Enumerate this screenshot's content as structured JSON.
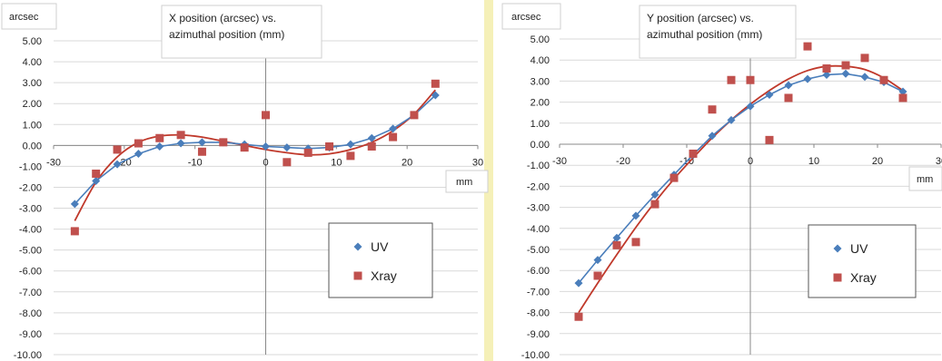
{
  "page": {
    "divider_color": "#f5f0b8"
  },
  "chart_data": [
    {
      "type": "scatter",
      "title": "X position (arcsec) vs. azimuthal position (mm)",
      "title_lines": [
        "X position (arcsec) vs.",
        "azimuthal position (mm)"
      ],
      "xlabel": "mm",
      "ylabel": "arcsec",
      "xlim": [
        -30,
        30
      ],
      "ylim": [
        -10,
        5
      ],
      "xticks": [
        -30,
        -20,
        -10,
        0,
        10,
        20,
        30
      ],
      "yticks": [
        5,
        4,
        3,
        2,
        1,
        0,
        -1,
        -2,
        -3,
        -4,
        -5,
        -6,
        -7,
        -8,
        -9,
        -10
      ],
      "ytick_labels": [
        "5.00",
        "4.00",
        "3.00",
        "2.00",
        "1.00",
        "0.00",
        "-1.00",
        "-2.00",
        "-3.00",
        "-4.00",
        "-5.00",
        "-6.00",
        "-7.00",
        "-8.00",
        "-9.00",
        "-10.00"
      ],
      "grid": {
        "horizontal": true,
        "vertical": false,
        "color": "#d9d9d9"
      },
      "legend_position": "bottom-right",
      "series": [
        {
          "name": "UV",
          "marker": "diamond",
          "color": "#4a7ebb",
          "connected": true,
          "x": [
            -27,
            -24,
            -21,
            -18,
            -15,
            -12,
            -9,
            -6,
            -3,
            0,
            3,
            6,
            9,
            12,
            15,
            18,
            21,
            24
          ],
          "y": [
            -2.8,
            -1.7,
            -0.9,
            -0.4,
            -0.05,
            0.1,
            0.15,
            0.15,
            0.05,
            -0.05,
            -0.1,
            -0.15,
            -0.1,
            0.05,
            0.35,
            0.8,
            1.45,
            2.4
          ]
        },
        {
          "name": "Xray",
          "marker": "square",
          "color": "#c0504d",
          "connected": false,
          "x": [
            -27,
            -24,
            -21,
            -18,
            -15,
            -12,
            -9,
            -6,
            -3,
            0,
            3,
            6,
            9,
            12,
            15,
            18,
            21,
            24
          ],
          "y": [
            -4.1,
            -1.35,
            -0.2,
            0.1,
            0.35,
            0.5,
            -0.3,
            0.15,
            -0.1,
            1.45,
            -0.8,
            -0.35,
            -0.05,
            -0.5,
            -0.05,
            0.4,
            1.45,
            2.95
          ]
        }
      ],
      "trendline": {
        "series": "Xray",
        "kind": "polynomial",
        "color": "#c0392b",
        "x": [
          -27,
          -24,
          -21,
          -18,
          -15,
          -12,
          -9,
          -6,
          -3,
          0,
          3,
          6,
          9,
          12,
          15,
          18,
          21,
          24
        ],
        "y": [
          -3.6,
          -1.75,
          -0.55,
          0.15,
          0.45,
          0.5,
          0.4,
          0.2,
          0.0,
          -0.2,
          -0.35,
          -0.45,
          -0.4,
          -0.2,
          0.15,
          0.7,
          1.5,
          2.65
        ]
      }
    },
    {
      "type": "scatter",
      "title": "Y position (arcsec) vs. azimuthal position (mm)",
      "title_lines": [
        "Y position (arcsec) vs.",
        "azimuthal position (mm)"
      ],
      "xlabel": "mm",
      "ylabel": "arcsec",
      "xlim": [
        -30,
        30
      ],
      "ylim": [
        -10,
        5
      ],
      "xticks": [
        -30,
        -20,
        -10,
        0,
        10,
        20,
        30
      ],
      "yticks": [
        5,
        4,
        3,
        2,
        1,
        0,
        -1,
        -2,
        -3,
        -4,
        -5,
        -6,
        -7,
        -8,
        -9,
        -10
      ],
      "ytick_labels": [
        "5.00",
        "4.00",
        "3.00",
        "2.00",
        "1.00",
        "0.00",
        "-1.00",
        "-2.00",
        "-3.00",
        "-4.00",
        "-5.00",
        "-6.00",
        "-7.00",
        "-8.00",
        "-9.00",
        "-10.00"
      ],
      "grid": {
        "horizontal": true,
        "vertical": false,
        "color": "#d9d9d9"
      },
      "legend_position": "bottom-right",
      "series": [
        {
          "name": "UV",
          "marker": "diamond",
          "color": "#4a7ebb",
          "connected": true,
          "x": [
            -27,
            -24,
            -21,
            -18,
            -15,
            -12,
            -9,
            -6,
            -3,
            0,
            3,
            6,
            9,
            12,
            15,
            18,
            21,
            24
          ],
          "y": [
            -6.6,
            -5.5,
            -4.45,
            -3.4,
            -2.4,
            -1.45,
            -0.5,
            0.4,
            1.15,
            1.8,
            2.35,
            2.8,
            3.1,
            3.3,
            3.35,
            3.2,
            2.95,
            2.5
          ]
        },
        {
          "name": "Xray",
          "marker": "square",
          "color": "#c0504d",
          "connected": false,
          "x": [
            -27,
            -24,
            -21,
            -18,
            -15,
            -12,
            -9,
            -6,
            -3,
            0,
            3,
            6,
            9,
            12,
            15,
            18,
            21,
            24
          ],
          "y": [
            -8.2,
            -6.25,
            -4.8,
            -4.65,
            -2.85,
            -1.6,
            -0.45,
            1.65,
            3.05,
            3.05,
            0.2,
            2.2,
            4.65,
            3.6,
            3.75,
            4.1,
            3.05,
            2.2
          ]
        }
      ],
      "trendline": {
        "series": "Xray",
        "kind": "polynomial",
        "color": "#c0392b",
        "x": [
          -27,
          -24,
          -21,
          -18,
          -15,
          -12,
          -9,
          -6,
          -3,
          0,
          3,
          6,
          9,
          12,
          15,
          18,
          21,
          24
        ],
        "y": [
          -8.0,
          -6.6,
          -5.25,
          -3.95,
          -2.75,
          -1.65,
          -0.65,
          0.3,
          1.15,
          1.9,
          2.55,
          3.1,
          3.5,
          3.7,
          3.7,
          3.55,
          3.15,
          2.55
        ]
      }
    }
  ]
}
